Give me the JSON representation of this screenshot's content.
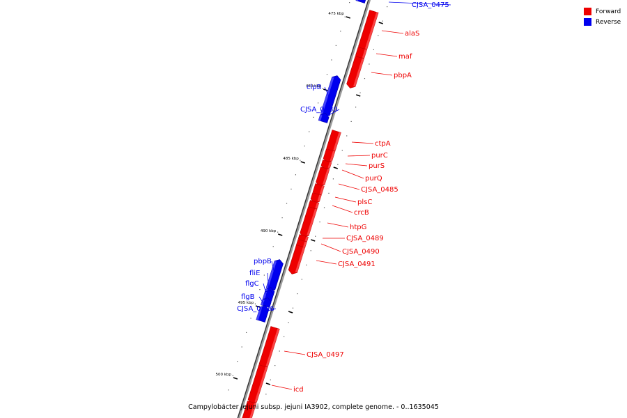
{
  "legend": {
    "forward_label": "Forward",
    "reverse_label": "Reverse",
    "forward_color": "#ee0000",
    "reverse_color": "#0000ee"
  },
  "caption": "Campylobacter jejuni subsp. jejuni IA3902, complete genome. - 0..1635045",
  "scale_ticks": [
    "475 kbp",
    "480 kbp",
    "485 kbp",
    "490 kbp",
    "495 kbp",
    "500 kbp"
  ],
  "genes": [
    {
      "name": "CJSA_0475",
      "strand": "reverse"
    },
    {
      "name": "alaS",
      "strand": "forward"
    },
    {
      "name": "maf",
      "strand": "forward"
    },
    {
      "name": "pbpA",
      "strand": "forward"
    },
    {
      "name": "clpB",
      "strand": "reverse"
    },
    {
      "name": "CJSA_0480",
      "strand": "reverse"
    },
    {
      "name": "ctpA",
      "strand": "forward"
    },
    {
      "name": "purC",
      "strand": "forward"
    },
    {
      "name": "purS",
      "strand": "forward"
    },
    {
      "name": "purQ",
      "strand": "forward"
    },
    {
      "name": "CJSA_0485",
      "strand": "forward"
    },
    {
      "name": "plsC",
      "strand": "forward"
    },
    {
      "name": "crcB",
      "strand": "forward"
    },
    {
      "name": "htpG",
      "strand": "forward"
    },
    {
      "name": "CJSA_0489",
      "strand": "forward"
    },
    {
      "name": "CJSA_0490",
      "strand": "forward"
    },
    {
      "name": "CJSA_0491",
      "strand": "forward"
    },
    {
      "name": "pbpB",
      "strand": "reverse"
    },
    {
      "name": "fliE",
      "strand": "reverse"
    },
    {
      "name": "flgC",
      "strand": "reverse"
    },
    {
      "name": "flgB",
      "strand": "reverse"
    },
    {
      "name": "CJSA_0496",
      "strand": "reverse"
    },
    {
      "name": "CJSA_0497",
      "strand": "forward"
    },
    {
      "name": "icd",
      "strand": "forward"
    }
  ]
}
